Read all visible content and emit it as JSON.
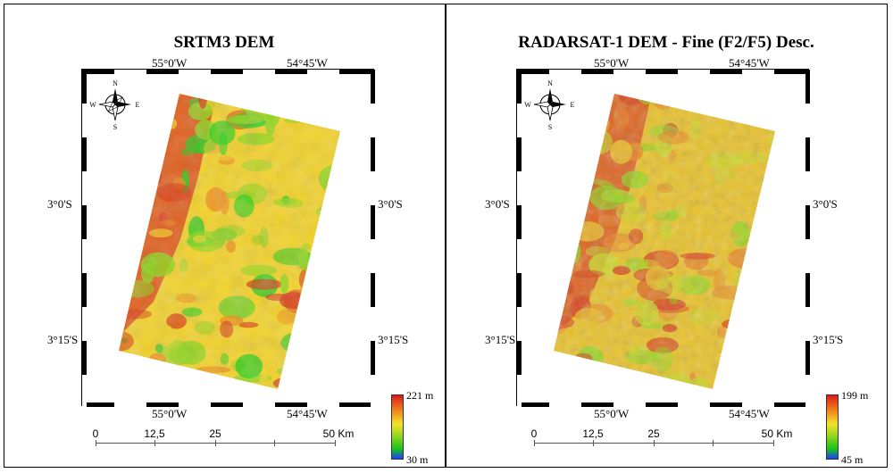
{
  "panels": [
    {
      "id": "srtm3",
      "title": "SRTM3 DEM",
      "lon_labels": {
        "left": "55°0'W",
        "right": "54°45'W"
      },
      "lat_labels": {
        "upper": "3°0'S",
        "lower": "3°15'S"
      },
      "compass": {
        "n": "N",
        "s": "S",
        "e": "E",
        "w": "W"
      },
      "legend": {
        "max": "221 m",
        "min": "30 m"
      },
      "scale": {
        "labels": [
          "0",
          "12,5",
          "25",
          "50 Km"
        ]
      },
      "palette": [
        "#1fcf1f",
        "#8fd61f",
        "#f2d22a",
        "#f08a1a",
        "#d9381b"
      ]
    },
    {
      "id": "radarsat1",
      "title": "RADARSAT-1 DEM - Fine (F2/F5) Desc.",
      "lon_labels": {
        "left": "55°0'W",
        "right": "54°45'W"
      },
      "lat_labels": {
        "upper": "3°0'S",
        "lower": "3°15'S"
      },
      "compass": {
        "n": "N",
        "s": "S",
        "e": "E",
        "w": "W"
      },
      "legend": {
        "max": "199 m",
        "min": "45 m"
      },
      "scale": {
        "labels": [
          "0",
          "12,5",
          "25",
          "50 Km"
        ]
      },
      "palette": [
        "#8fd61f",
        "#c9d628",
        "#e9c22a",
        "#e8862a",
        "#d8451f"
      ]
    }
  ]
}
